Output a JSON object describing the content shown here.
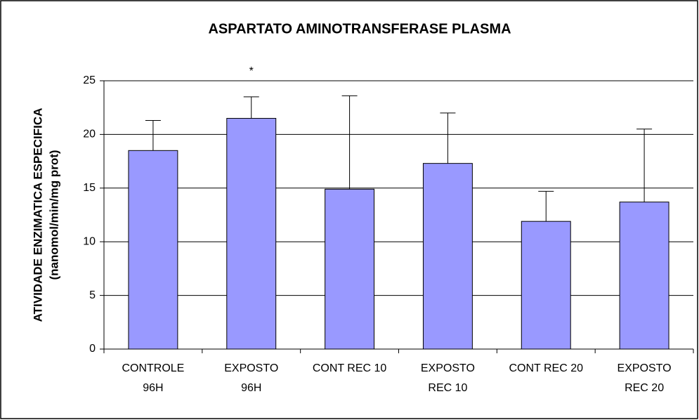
{
  "chart_data": {
    "type": "bar",
    "title": "ASPARTATO AMINOTRANSFERASE PLASMA",
    "ylabel": [
      "ATIVIDADE ENZIMATICA ESPECIFICA",
      "(nanomol/min/mg prot)"
    ],
    "categories": [
      [
        "CONTROLE",
        "96H"
      ],
      [
        "EXPOSTO",
        "96H"
      ],
      [
        "CONT REC 10"
      ],
      [
        "EXPOSTO",
        "REC 10"
      ],
      [
        "CONT REC 20"
      ],
      [
        "EXPOSTO",
        "REC 20"
      ]
    ],
    "values": [
      18.5,
      21.5,
      14.9,
      17.3,
      11.9,
      13.7
    ],
    "errors": [
      2.8,
      2.0,
      8.7,
      4.7,
      2.8,
      6.8
    ],
    "color": "#9999ff",
    "annotation": "*",
    "ylim": [
      0,
      25
    ],
    "yticks": [
      0,
      5,
      10,
      15,
      20,
      25
    ],
    "grid": true
  }
}
